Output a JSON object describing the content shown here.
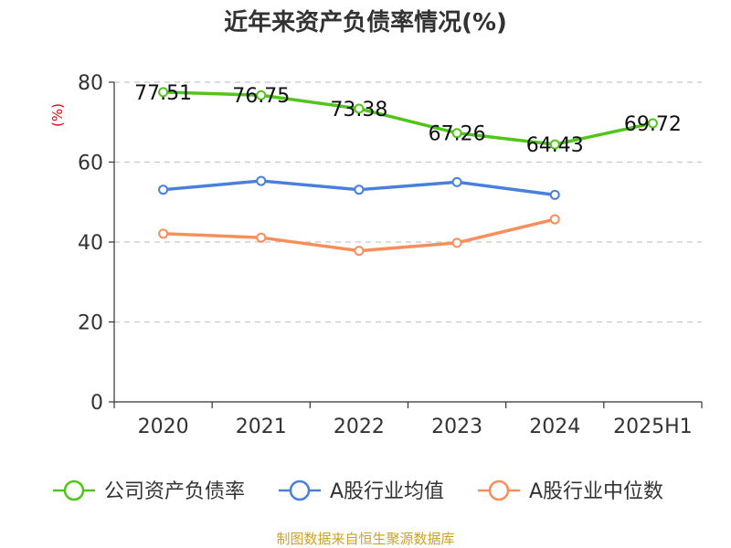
{
  "chart_data": {
    "type": "line",
    "title": "近年来资产负债率情况(%)",
    "ylabel": "(%)",
    "xlabel": "",
    "categories": [
      "2020",
      "2021",
      "2022",
      "2023",
      "2024",
      "2025H1"
    ],
    "ylim": [
      0,
      80
    ],
    "yticks": [
      0,
      20,
      40,
      60,
      80
    ],
    "grid": "horizontal dashed",
    "legend": "bottom",
    "series": [
      {
        "name": "公司资产负债率",
        "color": "#52c41a",
        "values": [
          77.51,
          76.75,
          73.38,
          67.26,
          64.43,
          69.72
        ],
        "labels": [
          "77.51",
          "76.75",
          "73.38",
          "67.26",
          "64.43",
          "69.72"
        ]
      },
      {
        "name": "A股行业均值",
        "color": "#4a7fdb",
        "values": [
          53.1,
          55.3,
          53.1,
          55.0,
          51.8,
          null
        ]
      },
      {
        "name": "A股行业中位数",
        "color": "#f98e5c",
        "values": [
          42.1,
          41.1,
          37.8,
          39.8,
          45.7,
          null
        ]
      }
    ]
  },
  "source": "制图数据来自恒生聚源数据库"
}
